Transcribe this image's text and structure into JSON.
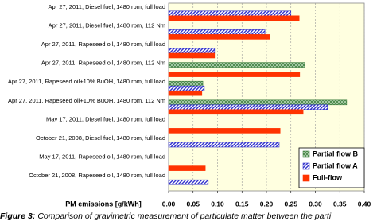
{
  "chart_data": {
    "type": "bar",
    "orientation": "horizontal",
    "x_label": "PM emissions [g/kWh]",
    "caption_label": "Figure 3:",
    "caption": "Comparison of gravimetric measurement of particulate matter between the parti",
    "categories": [
      "Apr 27, 2011, Diesel fuel, 1480 rpm, full load",
      "Apr 27, 2011, Diesel fuel, 1480 rpm, 112 Nm",
      "Apr 27, 2011, Rapeseed oil, 1480 rpm, full load",
      "Apr 27, 2011, Rapeseed oil, 1480 rpm, 112 Nm",
      "Apr 27, 2011, Rapeseed oil+10% BuOH, 1480 rpm, full load",
      "Apr 27, 2011, Rapeseed oil+10% BuOH, 1480 rpm, 112 Nm",
      "May 17, 2011, Diesel fuel, 1480 rpm, full load",
      "October 21, 2008, Diesel fuel, 1480 rpm, full load",
      "May 17, 2011, Rapeseed oil, 1480 rpm, full load",
      "October 21, 2008, Rapeseed oil, 1480 rpm, full load"
    ],
    "series": [
      {
        "name": "Partial flow B",
        "color": "#3f7f3f",
        "values": [
          null,
          null,
          null,
          0.278,
          0.07,
          0.364,
          null,
          null,
          null,
          null
        ]
      },
      {
        "name": "Partial flow A",
        "color": "#3333cc",
        "values": [
          0.25,
          0.197,
          0.094,
          null,
          0.073,
          0.325,
          null,
          0.226,
          null,
          0.081
        ]
      },
      {
        "name": "Full-flow",
        "color": "#ff3300",
        "values": [
          0.267,
          0.207,
          0.094,
          0.268,
          0.068,
          0.275,
          0.228,
          null,
          0.075,
          null
        ]
      }
    ],
    "xlim": [
      0,
      0.4
    ],
    "xticks": [
      {
        "value": 0,
        "label": "0.00"
      },
      {
        "value": 0.05,
        "label": "0.05"
      },
      {
        "value": 0.1,
        "label": "0.10"
      },
      {
        "value": 0.15,
        "label": "0.15"
      },
      {
        "value": 0.2,
        "label": "0.20"
      },
      {
        "value": 0.25,
        "label": "0.25"
      },
      {
        "value": 0.3,
        "label": "0.30"
      },
      {
        "value": 0.35,
        "label": "0.35"
      },
      {
        "value": 0.4,
        "label": "0.40"
      }
    ],
    "grid": true
  }
}
